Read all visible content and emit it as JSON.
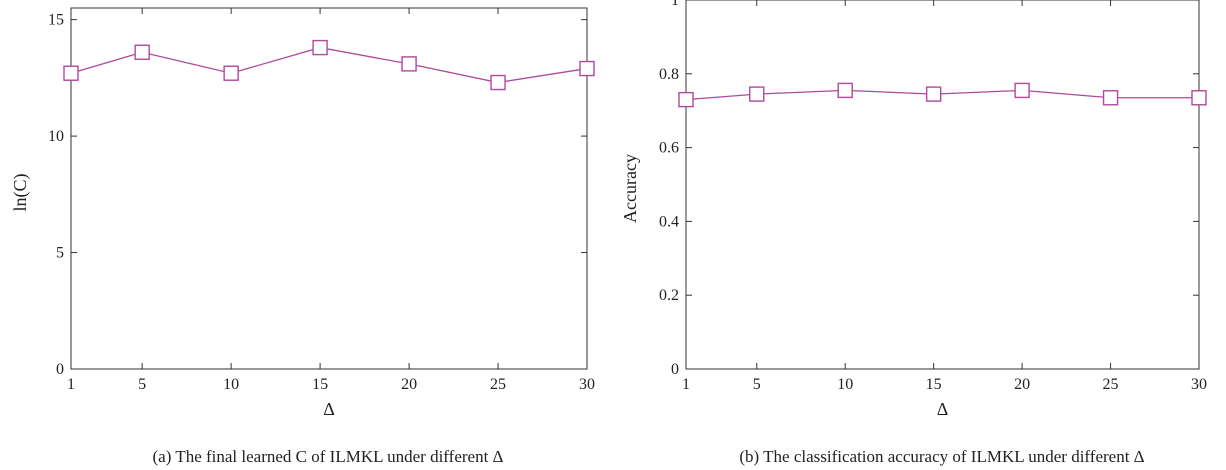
{
  "figure": {
    "caption_a": "(a) The final learned C of ILMKL under different Δ",
    "caption_b": "(b) The classification accuracy of ILMKL under different Δ"
  },
  "colors": {
    "series": "#b0489e",
    "axis": "#333333"
  },
  "chart_data": [
    {
      "type": "line",
      "title": "",
      "xlabel": "Δ",
      "ylabel": "ln(C)",
      "x": [
        1,
        5,
        10,
        15,
        20,
        25,
        30
      ],
      "x_ticks": [
        1,
        5,
        10,
        15,
        20,
        25,
        30
      ],
      "xlim": [
        1,
        30
      ],
      "ylim": [
        0,
        15.5
      ],
      "y_ticks": [
        0,
        5,
        10,
        15
      ],
      "y_tick_labels": [
        "0",
        "5",
        "10",
        "15"
      ],
      "marker": "square",
      "grid": false,
      "series": [
        {
          "values": [
            12.7,
            13.6,
            12.7,
            13.8,
            13.1,
            12.3,
            12.9
          ]
        }
      ]
    },
    {
      "type": "line",
      "title": "",
      "xlabel": "Δ",
      "ylabel": "Accuracy",
      "x": [
        1,
        5,
        10,
        15,
        20,
        25,
        30
      ],
      "x_ticks": [
        1,
        5,
        10,
        15,
        20,
        25,
        30
      ],
      "xlim": [
        1,
        30
      ],
      "ylim": [
        0,
        1
      ],
      "y_ticks": [
        0,
        0.2,
        0.4,
        0.6,
        0.8,
        1
      ],
      "y_tick_labels": [
        "0",
        "0.2",
        "0.4",
        "0.6",
        "0.8",
        "1"
      ],
      "marker": "square",
      "grid": false,
      "series": [
        {
          "values": [
            0.73,
            0.745,
            0.755,
            0.745,
            0.755,
            0.735,
            0.735
          ]
        }
      ]
    }
  ]
}
